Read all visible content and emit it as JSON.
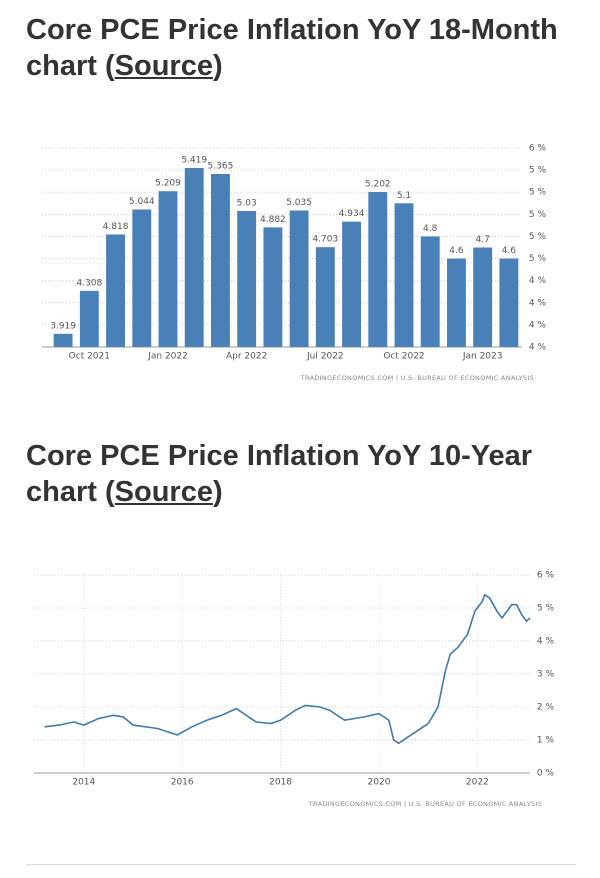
{
  "chart_data": [
    {
      "type": "bar",
      "title_parts": [
        "Core PCE Price Inflation YoY 18-Month chart (",
        "Source",
        ")"
      ],
      "categories": [
        null,
        "Oct 2021",
        null,
        null,
        "Jan 2022",
        null,
        null,
        "Apr 2022",
        null,
        null,
        "Jul 2022",
        null,
        null,
        "Oct 2022",
        null,
        null,
        "Jan 2023",
        null
      ],
      "values": [
        3.919,
        4.308,
        4.818,
        5.044,
        5.209,
        5.419,
        5.365,
        5.03,
        4.882,
        5.035,
        4.703,
        4.934,
        5.202,
        5.1,
        4.8,
        4.6,
        4.7,
        4.6
      ],
      "color": "#4a80b8",
      "ylim": [
        3.8,
        5.6
      ],
      "yticks": [
        {
          "value": 3.8,
          "label": "4 %"
        },
        {
          "value": 4.0,
          "label": "4 %"
        },
        {
          "value": 4.2,
          "label": "4 %"
        },
        {
          "value": 4.4,
          "label": "4 %"
        },
        {
          "value": 4.6,
          "label": "5 %"
        },
        {
          "value": 4.8,
          "label": "5 %"
        },
        {
          "value": 5.0,
          "label": "5 %"
        },
        {
          "value": 5.2,
          "label": "5 %"
        },
        {
          "value": 5.4,
          "label": "5 %"
        },
        {
          "value": 5.6,
          "label": "6 %"
        }
      ],
      "grid": true,
      "source_note": "TRADINGECONOMICS.COM | U.S. BUREAU OF ECONOMIC ANALYSIS"
    },
    {
      "type": "line",
      "title_parts": [
        "Core PCE Price Inflation YoY 10-Year chart (",
        "Source",
        ")"
      ],
      "x": [
        2013.2,
        2013.5,
        2013.8,
        2014.0,
        2014.3,
        2014.6,
        2014.8,
        2015.0,
        2015.5,
        2015.9,
        2016.2,
        2016.5,
        2016.8,
        2017.1,
        2017.5,
        2017.8,
        2018.0,
        2018.3,
        2018.5,
        2018.8,
        2019.0,
        2019.3,
        2019.7,
        2020.0,
        2020.2,
        2020.3,
        2020.4,
        2020.6,
        2020.9,
        2021.0,
        2021.2,
        2021.35,
        2021.45,
        2021.6,
        2021.8,
        2021.95,
        2022.1,
        2022.15,
        2022.25,
        2022.4,
        2022.5,
        2022.6,
        2022.7,
        2022.8,
        2022.9,
        2023.0,
        2023.07
      ],
      "values": [
        1.4,
        1.45,
        1.55,
        1.45,
        1.65,
        1.75,
        1.7,
        1.45,
        1.35,
        1.15,
        1.4,
        1.6,
        1.75,
        1.95,
        1.55,
        1.5,
        1.6,
        1.9,
        2.05,
        2.0,
        1.9,
        1.6,
        1.7,
        1.8,
        1.6,
        1.0,
        0.9,
        1.1,
        1.4,
        1.5,
        2.0,
        3.1,
        3.6,
        3.8,
        4.2,
        4.9,
        5.2,
        5.4,
        5.3,
        4.9,
        4.7,
        4.9,
        5.1,
        5.1,
        4.8,
        4.6,
        4.7
      ],
      "color": "#3f79ad",
      "xlim": [
        2013.15,
        2023.07
      ],
      "xticks": [
        2014,
        2016,
        2018,
        2020,
        2022
      ],
      "ylim": [
        0,
        6
      ],
      "yticks": [
        {
          "value": 0,
          "label": "0 %"
        },
        {
          "value": 1,
          "label": "1 %"
        },
        {
          "value": 2,
          "label": "2 %"
        },
        {
          "value": 3,
          "label": "3 %"
        },
        {
          "value": 4,
          "label": "4 %"
        },
        {
          "value": 5,
          "label": "5 %"
        },
        {
          "value": 6,
          "label": "6 %"
        }
      ],
      "grid": true,
      "source_note": "TRADINGECONOMICS.COM | U.S. BUREAU OF ECONOMIC ANALYSIS"
    }
  ]
}
